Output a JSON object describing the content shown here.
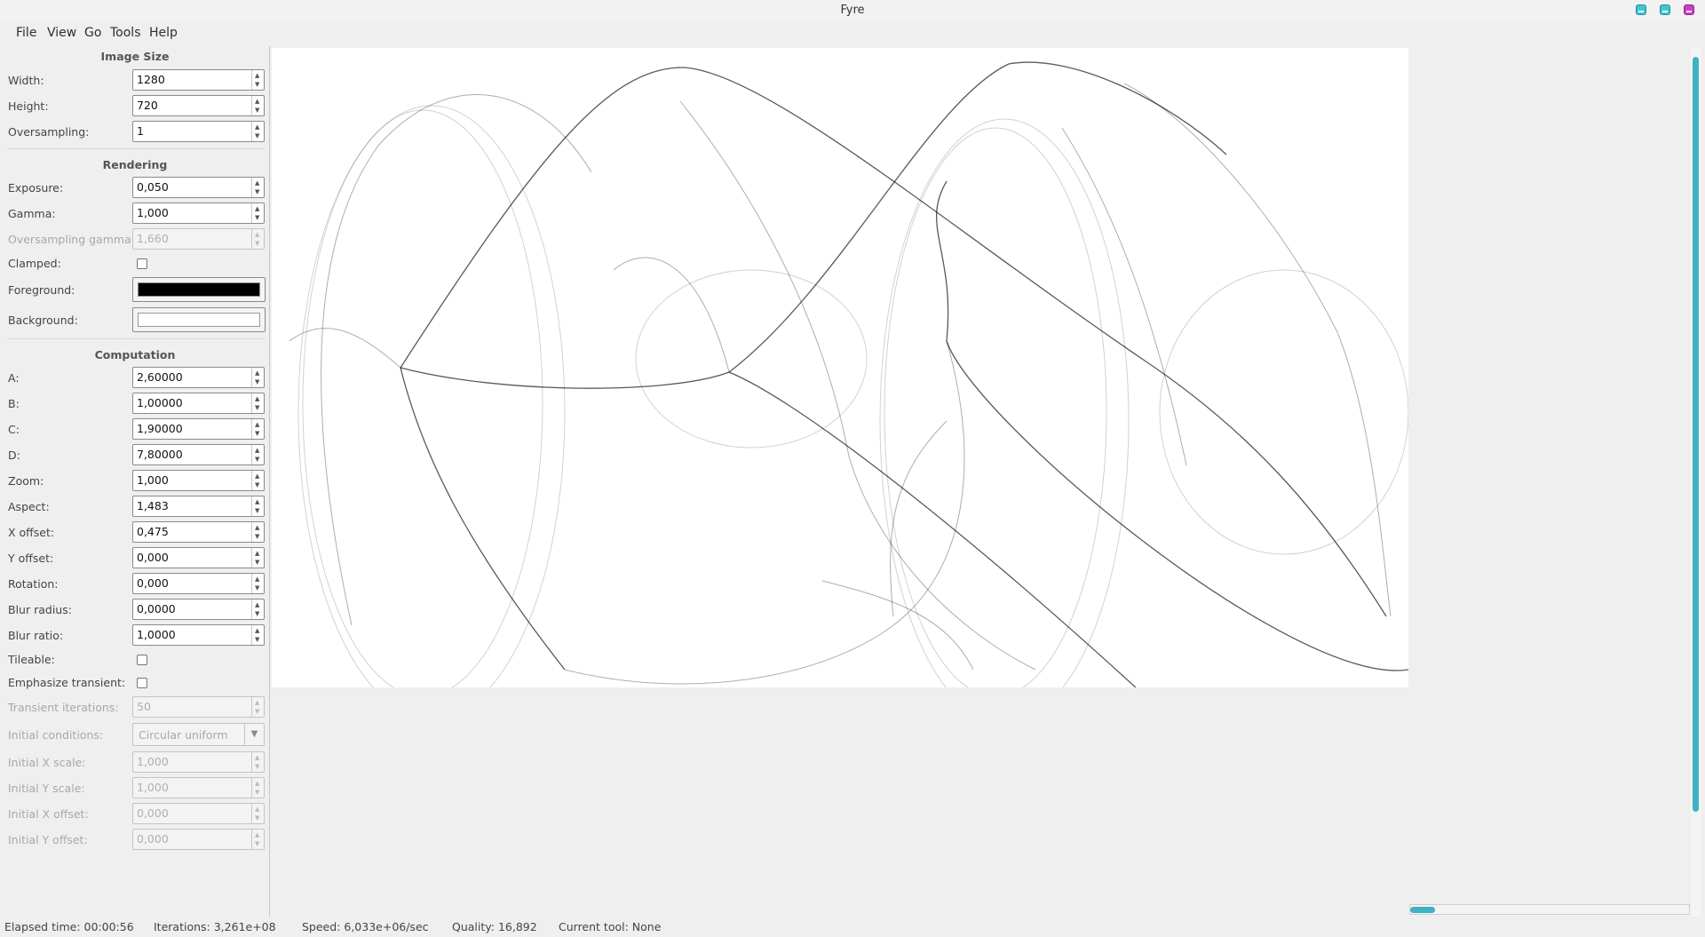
{
  "window": {
    "title": "Fyre"
  },
  "menu": [
    "File",
    "View",
    "Go",
    "Tools",
    "Help"
  ],
  "sections": {
    "image_size": "Image Size",
    "rendering": "Rendering",
    "computation": "Computation"
  },
  "image_size": {
    "width_label": "Width:",
    "width": "1280",
    "height_label": "Height:",
    "height": "720",
    "oversampling_label": "Oversampling:",
    "oversampling": "1"
  },
  "rendering": {
    "exposure_label": "Exposure:",
    "exposure": "0,050",
    "gamma_label": "Gamma:",
    "gamma": "1,000",
    "oversampling_gamma_label": "Oversampling gamma:",
    "oversampling_gamma": "1,660",
    "clamped_label": "Clamped:",
    "foreground_label": "Foreground:",
    "foreground_color": "#000000",
    "background_label": "Background:",
    "background_color": "#ffffff"
  },
  "computation": {
    "a_label": "A:",
    "a": "2,60000",
    "b_label": "B:",
    "b": "1,00000",
    "c_label": "C:",
    "c": "1,90000",
    "d_label": "D:",
    "d": "7,80000",
    "zoom_label": "Zoom:",
    "zoom": "1,000",
    "aspect_label": "Aspect:",
    "aspect": "1,483",
    "xoffset_label": "X offset:",
    "xoffset": "0,475",
    "yoffset_label": "Y offset:",
    "yoffset": "0,000",
    "rotation_label": "Rotation:",
    "rotation": "0,000",
    "blur_radius_label": "Blur radius:",
    "blur_radius": "0,0000",
    "blur_ratio_label": "Blur ratio:",
    "blur_ratio": "1,0000",
    "tileable_label": "Tileable:",
    "emphasize_label": "Emphasize transient:",
    "transient_label": "Transient iterations:",
    "transient": "50",
    "initial_cond_label": "Initial conditions:",
    "initial_cond": "Circular uniform",
    "init_xscale_label": "Initial X scale:",
    "init_xscale": "1,000",
    "init_yscale_label": "Initial Y scale:",
    "init_yscale": "1,000",
    "init_xoffset_label": "Initial X offset:",
    "init_xoffset": "0,000",
    "init_yoffset_label": "Initial Y offset:",
    "init_yoffset": "0,000"
  },
  "status": {
    "elapsed": "Elapsed time: 00:00:56",
    "iterations": "Iterations: 3,261e+08",
    "speed": "Speed: 6,033e+06/sec",
    "quality": "Quality: 16,892",
    "tool": "Current tool: None"
  }
}
